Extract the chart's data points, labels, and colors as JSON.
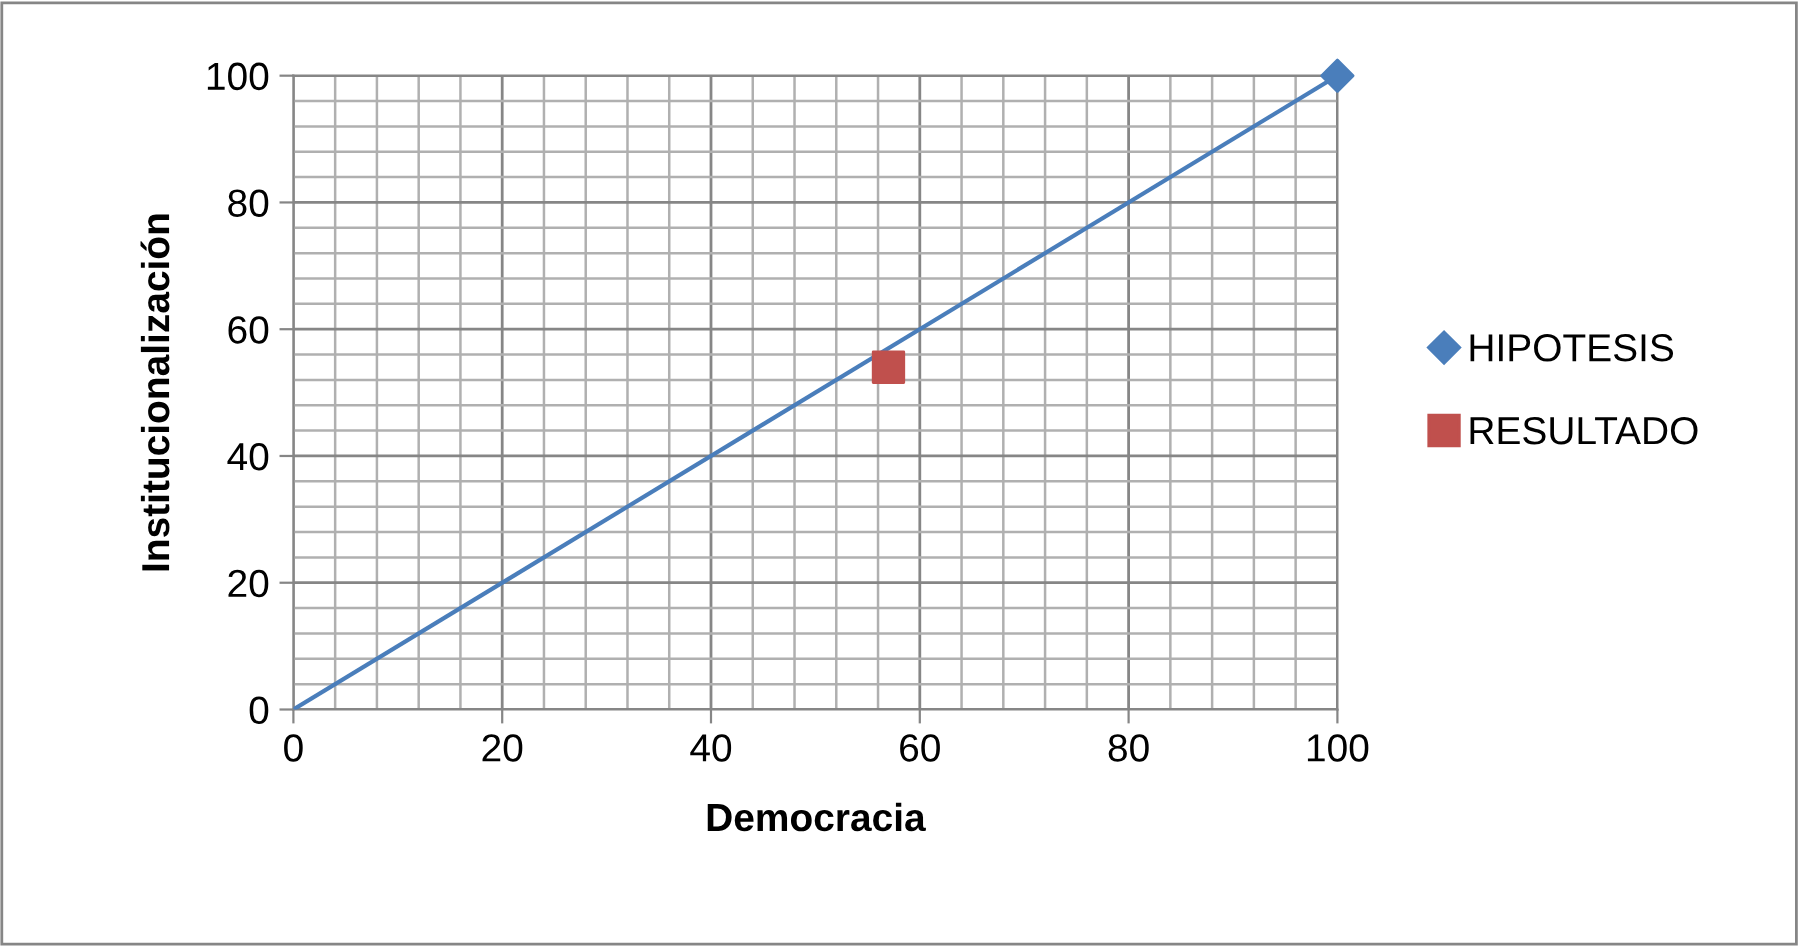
{
  "chart_data": {
    "type": "scatter",
    "xlabel": "Democracia",
    "ylabel": "Institucionalización",
    "xlim": [
      0,
      100
    ],
    "ylim": [
      0,
      100
    ],
    "xticks": [
      0,
      {
        "value": 4,
        "label": null
      },
      {
        "value": 8,
        "label": null
      },
      {
        "value": 12,
        "label": null
      },
      {
        "value": 16,
        "label": null
      },
      20,
      {
        "value": 24,
        "label": null
      },
      {
        "value": 28,
        "label": null
      },
      {
        "value": 32,
        "label": null
      },
      {
        "value": 36,
        "label": null
      },
      40,
      {
        "value": 44,
        "label": null
      },
      {
        "value": 48,
        "label": null
      },
      {
        "value": 52,
        "label": null
      },
      {
        "value": 56,
        "label": null
      },
      60,
      {
        "value": 64,
        "label": null
      },
      {
        "value": 68,
        "label": null
      },
      {
        "value": 72,
        "label": null
      },
      {
        "value": 76,
        "label": null
      },
      80,
      {
        "value": 84,
        "label": null
      },
      {
        "value": 88,
        "label": null
      },
      {
        "value": 92,
        "label": null
      },
      {
        "value": 96,
        "label": null
      },
      100
    ],
    "yticks": [
      0,
      {
        "value": 4,
        "label": null
      },
      {
        "value": 8,
        "label": null
      },
      {
        "value": 12,
        "label": null
      },
      {
        "value": 16,
        "label": null
      },
      20,
      {
        "value": 24,
        "label": null
      },
      {
        "value": 28,
        "label": null
      },
      {
        "value": 32,
        "label": null
      },
      {
        "value": 36,
        "label": null
      },
      40,
      {
        "value": 44,
        "label": null
      },
      {
        "value": 48,
        "label": null
      },
      {
        "value": 52,
        "label": null
      },
      {
        "value": 56,
        "label": null
      },
      60,
      {
        "value": 64,
        "label": null
      },
      {
        "value": 68,
        "label": null
      },
      {
        "value": 72,
        "label": null
      },
      {
        "value": 76,
        "label": null
      },
      80,
      {
        "value": 84,
        "label": null
      },
      {
        "value": 88,
        "label": null
      },
      {
        "value": 92,
        "label": null
      },
      {
        "value": 96,
        "label": null
      },
      100
    ],
    "grid": true,
    "legend": "right",
    "series": [
      {
        "type": "line",
        "color": "#4a7ebb",
        "x": [
          0,
          100
        ],
        "values": [
          0,
          100
        ],
        "marker": "none"
      },
      {
        "name": "HIPOTESIS",
        "color": "#4a7ebb",
        "x": [
          100
        ],
        "values": [
          100
        ],
        "marker": "diamond"
      },
      {
        "name": "RESULTADO",
        "color": "#c0504d",
        "x": [
          57
        ],
        "values": [
          54
        ],
        "marker": "square"
      }
    ]
  }
}
